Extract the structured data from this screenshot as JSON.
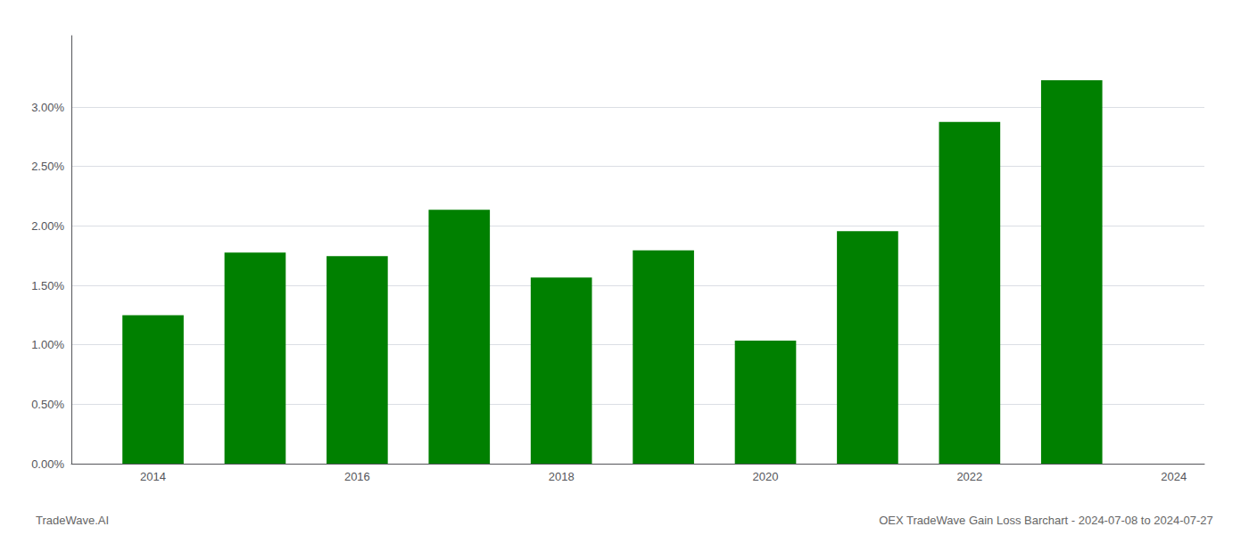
{
  "chart_data": {
    "type": "bar",
    "x": [
      2014,
      2015,
      2016,
      2017,
      2018,
      2019,
      2020,
      2021,
      2022,
      2023
    ],
    "values": [
      0.01248,
      0.01775,
      0.01745,
      0.02135,
      0.01565,
      0.01795,
      0.01035,
      0.01955,
      0.02875,
      0.03225
    ],
    "color": "#008000",
    "xlim": [
      2013.2,
      2024.3
    ],
    "xticks": [
      2014,
      2016,
      2018,
      2020,
      2022,
      2024
    ],
    "ylim": [
      0,
      0.036
    ],
    "yticks": [
      {
        "value": 0,
        "label": "0.00%"
      },
      {
        "value": 0.005,
        "label": "0.50%"
      },
      {
        "value": 0.01,
        "label": "1.00%"
      },
      {
        "value": 0.015,
        "label": "1.50%"
      },
      {
        "value": 0.02,
        "label": "2.00%"
      },
      {
        "value": 0.025,
        "label": "2.50%"
      },
      {
        "value": 0.03,
        "label": "3.00%"
      }
    ],
    "grid": true,
    "annotations": [
      "TradeWave.AI",
      "OEX TradeWave Gain Loss Barchart - 2024-07-08 to 2024-07-27"
    ]
  }
}
